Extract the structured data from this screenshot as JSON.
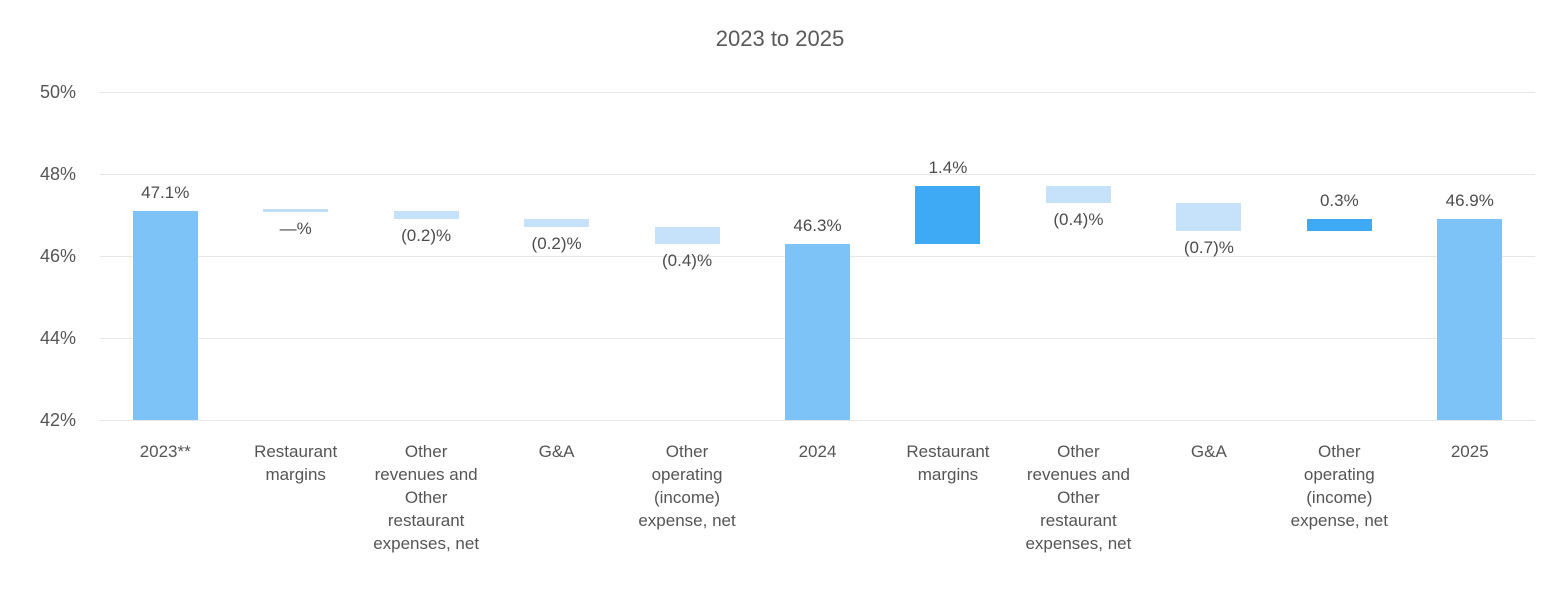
{
  "chart_data": {
    "type": "bar",
    "subtype": "waterfall",
    "title": "2023 to 2025",
    "y_axis": {
      "min": 42,
      "max": 50,
      "ticks": [
        {
          "label": "50%",
          "value": 50
        },
        {
          "label": "48%",
          "value": 48
        },
        {
          "label": "46%",
          "value": 46
        },
        {
          "label": "44%",
          "value": 44
        },
        {
          "label": "42%",
          "value": 42
        }
      ]
    },
    "categories": [
      "2023**",
      "Restaurant margins",
      "Other revenues and Other restaurant expenses, net",
      "G&A",
      "Other operating (income) expense, net",
      "2024",
      "Restaurant margins",
      "Other revenues and Other restaurant expenses, net",
      "G&A",
      "Other operating (income) expense, net",
      "2025"
    ],
    "bars": [
      {
        "category": "2023**",
        "value_label": "47.1%",
        "type": "total",
        "start": 42.0,
        "end": 47.1,
        "label_side": "above"
      },
      {
        "category": "Restaurant margins",
        "value_label": "—%",
        "type": "zero",
        "start": 47.1,
        "end": 47.1,
        "label_side": "below"
      },
      {
        "category": "Other revenues and Other restaurant expenses, net",
        "value_label": "(0.2)%",
        "type": "decrease",
        "start": 47.1,
        "end": 46.9,
        "label_side": "below"
      },
      {
        "category": "G&A",
        "value_label": "(0.2)%",
        "type": "decrease",
        "start": 46.9,
        "end": 46.7,
        "label_side": "below"
      },
      {
        "category": "Other operating (income) expense, net",
        "value_label": "(0.4)%",
        "type": "decrease",
        "start": 46.7,
        "end": 46.3,
        "label_side": "below"
      },
      {
        "category": "2024",
        "value_label": "46.3%",
        "type": "total",
        "start": 42.0,
        "end": 46.3,
        "label_side": "above"
      },
      {
        "category": "Restaurant margins",
        "value_label": "1.4%",
        "type": "increase",
        "start": 46.3,
        "end": 47.7,
        "label_side": "above"
      },
      {
        "category": "Other revenues and Other restaurant expenses, net",
        "value_label": "(0.4)%",
        "type": "decrease",
        "start": 47.7,
        "end": 47.3,
        "label_side": "below"
      },
      {
        "category": "G&A",
        "value_label": "(0.7)%",
        "type": "decrease",
        "start": 47.3,
        "end": 46.6,
        "label_side": "below"
      },
      {
        "category": "Other operating (income) expense, net",
        "value_label": "0.3%",
        "type": "increase",
        "start": 46.6,
        "end": 46.9,
        "label_side": "above"
      },
      {
        "category": "2025",
        "value_label": "46.9%",
        "type": "total",
        "start": 42.0,
        "end": 46.9,
        "label_side": "above"
      }
    ],
    "colors": {
      "total": "#7EC3F7",
      "increase": "#3EA9F5",
      "decrease": "#C5E2FA",
      "zero": "#C0DFF4",
      "gridline": "#E7E7E7",
      "title_text": "#595959",
      "axis_text": "#555555",
      "value_text": "#4C4C4C"
    },
    "legend": null,
    "grid": true
  }
}
